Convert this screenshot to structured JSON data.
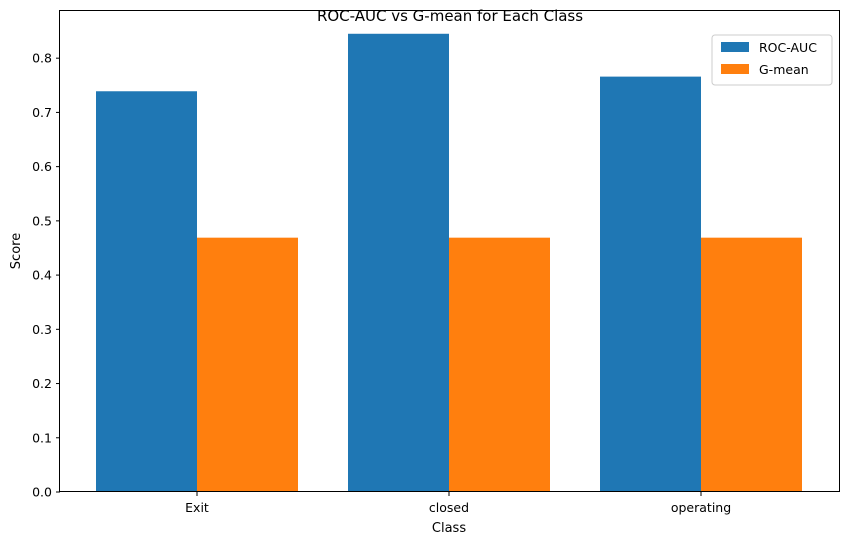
{
  "chart_data": {
    "type": "bar",
    "title": "ROC-AUC vs G-mean for Each Class",
    "xlabel": "Class",
    "ylabel": "Score",
    "categories": [
      "Exit",
      "closed",
      "operating"
    ],
    "series": [
      {
        "name": "ROC-AUC",
        "values": [
          0.739,
          0.845,
          0.766
        ],
        "color": "#1f77b4"
      },
      {
        "name": "G-mean",
        "values": [
          0.469,
          0.469,
          0.469
        ],
        "color": "#ff7f0e"
      }
    ],
    "ylim": [
      0,
      0.887
    ],
    "yticks": [
      "0.0",
      "0.1",
      "0.2",
      "0.3",
      "0.4",
      "0.5",
      "0.6",
      "0.7",
      "0.8"
    ],
    "grid": false,
    "legend_position": "top-right"
  }
}
